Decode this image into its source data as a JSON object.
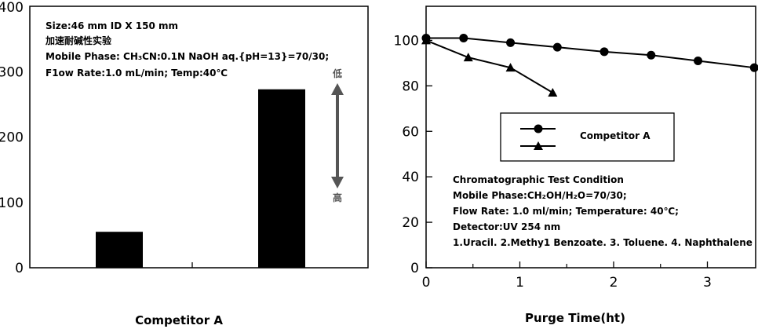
{
  "chart_data": [
    {
      "type": "bar",
      "xlabel": "Competitor A",
      "ylim": [
        0,
        400
      ],
      "yticks": [
        "0",
        "100",
        "200",
        "300",
        "400"
      ],
      "values": [
        55,
        273
      ],
      "annotations": [
        "Size:46 mm ID X 150 mm",
        "加速耐碱性实验",
        "Mobile Phase: CH₃CN:0.1N NaOH aq.{pH=13}=70/30;",
        "F1ow Rate:1.0 mL/min; Temp:40℃"
      ],
      "arrow": {
        "top_label": "低",
        "bottom_label": "高",
        "color": "#555555"
      },
      "grid": false
    },
    {
      "type": "line",
      "xlabel": "Purge Time(ht)",
      "xlim": [
        0,
        3.5
      ],
      "ylim": [
        0,
        115
      ],
      "xticks": [
        "0",
        "1",
        "2",
        "3"
      ],
      "yticks": [
        "0",
        "20",
        "40",
        "60",
        "80",
        "100"
      ],
      "series": [
        {
          "name": "Competitor A",
          "marker": "circle",
          "x": [
            0,
            0.4,
            0.9,
            1.4,
            1.9,
            2.4,
            2.9,
            3.5
          ],
          "y": [
            101,
            101,
            99,
            97,
            95,
            93.5,
            91,
            88
          ]
        },
        {
          "name": "",
          "marker": "triangle",
          "x": [
            0,
            0.45,
            0.9,
            1.35
          ],
          "y": [
            100,
            92.5,
            88,
            77
          ]
        }
      ],
      "legend_position": "center",
      "annotations": [
        "Chromatographic Test Condition",
        "Mobile Phase:CH₂OH/H₂O=70/30;",
        "Flow Rate: 1.0 ml/min; Temperature: 40℃;",
        "Detector:UV 254 nm",
        "1.Uracil. 2.Methy1 Benzoate. 3. Toluene. 4. Naphthalene"
      ],
      "grid": false
    }
  ]
}
